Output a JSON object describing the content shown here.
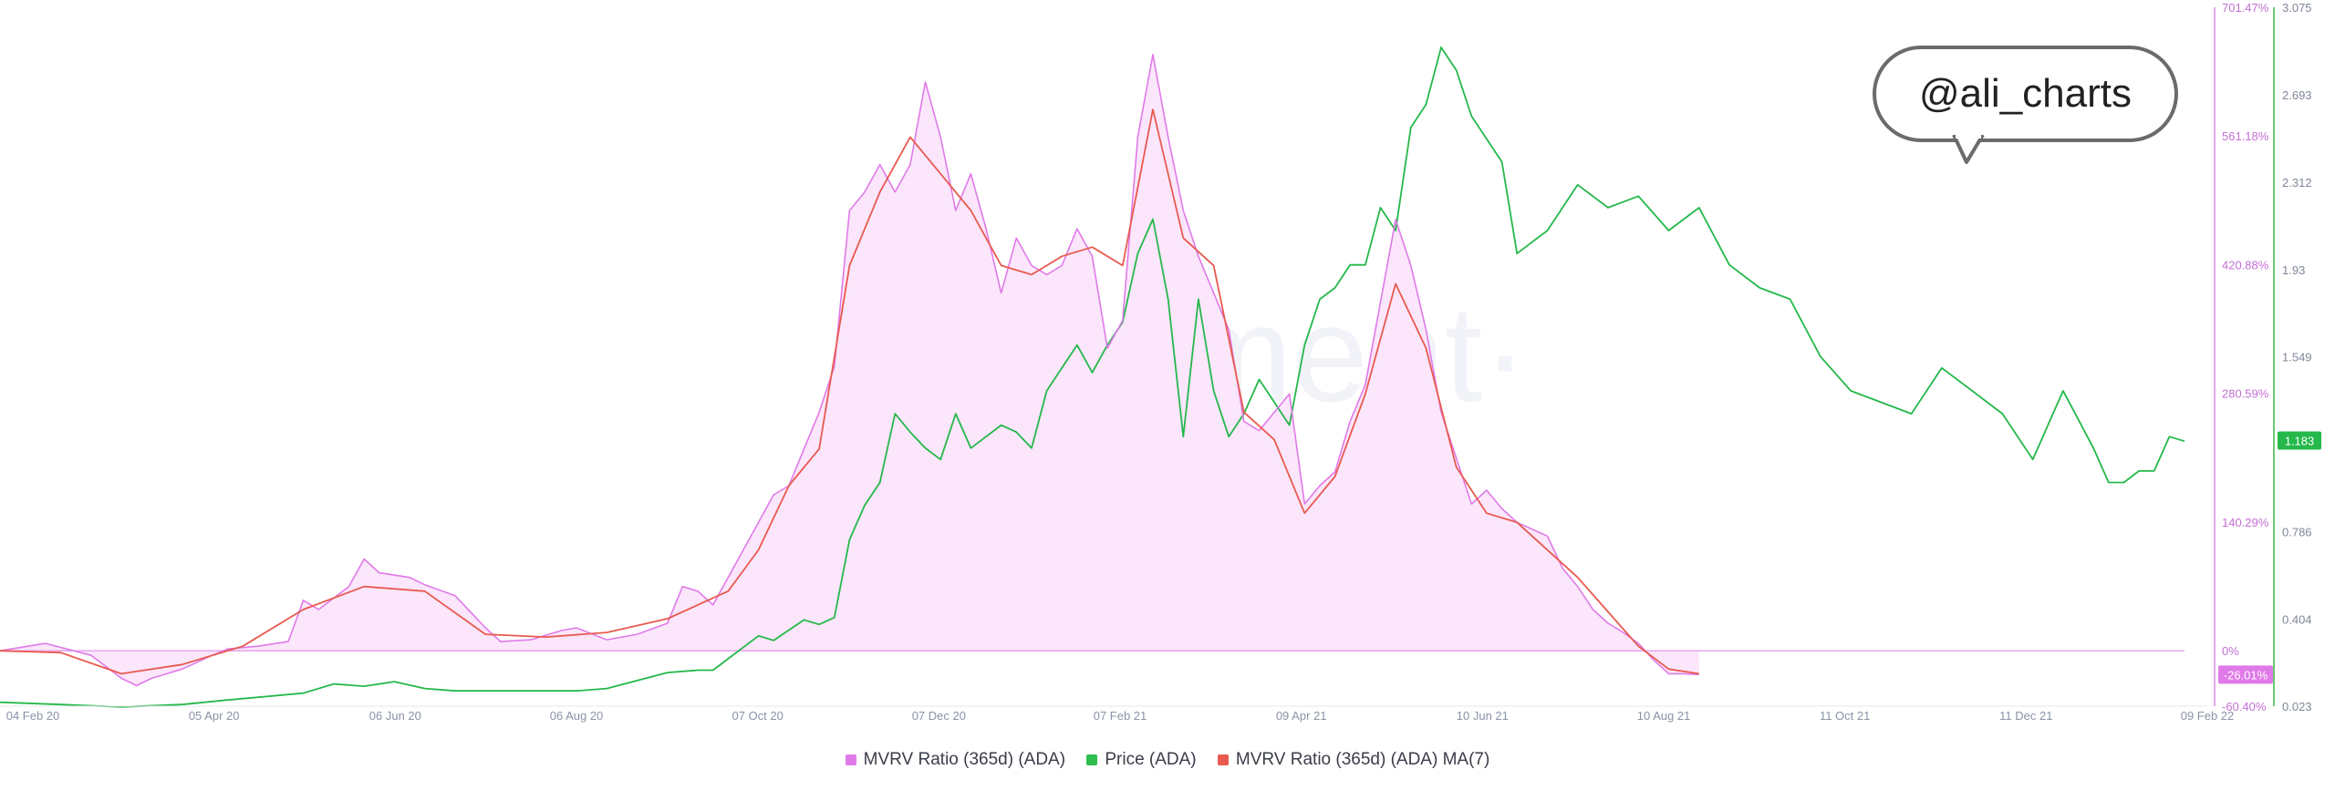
{
  "watermark": "·santiment·",
  "bubble": {
    "text": "@ali_charts"
  },
  "colors": {
    "mvrv": "#e07ae8",
    "mvrv_fill": "#fbe6fc",
    "price": "#25b84a",
    "ma": "#e85a4f",
    "zero_line": "#e6a6ec"
  },
  "legend": [
    {
      "name": "MVRV Ratio (365d) (ADA)",
      "color": "#e07ae8"
    },
    {
      "name": "Price (ADA)",
      "color": "#2ebd4e"
    },
    {
      "name": "MVRV Ratio (365d) (ADA) MA(7)",
      "color": "#e85a4f"
    }
  ],
  "chart_data": {
    "type": "line",
    "x_ticks": [
      "04 Feb 20",
      "05 Apr 20",
      "06 Jun 20",
      "06 Aug 20",
      "07 Oct 20",
      "07 Dec 20",
      "07 Feb 21",
      "09 Apr 21",
      "10 Jun 21",
      "10 Aug 21",
      "11 Oct 21",
      "11 Dec 21",
      "09 Feb 22"
    ],
    "left_axis": {
      "ticks": [
        "701.47%",
        "561.18%",
        "420.88%",
        "280.59%",
        "140.29%",
        "0%",
        "-60.40%"
      ],
      "range": [
        -60.4,
        701.47
      ],
      "badge": "-26.01%"
    },
    "right_axis": {
      "ticks": [
        "3.075",
        "2.693",
        "2.312",
        "1.93",
        "1.549",
        "1.168",
        "0.786",
        "0.404",
        "0.023"
      ],
      "range": [
        0.023,
        3.075
      ],
      "badge": "1.183"
    },
    "series": [
      {
        "name": "MVRV Ratio (365d) (ADA)",
        "axis": "left",
        "points": [
          [
            0,
            0
          ],
          [
            3,
            8
          ],
          [
            6,
            -5
          ],
          [
            8,
            -30
          ],
          [
            9,
            -38
          ],
          [
            10,
            -30
          ],
          [
            11,
            -25
          ],
          [
            12,
            -20
          ],
          [
            14,
            -5
          ],
          [
            15,
            2
          ],
          [
            17,
            5
          ],
          [
            19,
            10
          ],
          [
            20,
            55
          ],
          [
            21,
            45
          ],
          [
            23,
            70
          ],
          [
            24,
            100
          ],
          [
            25,
            85
          ],
          [
            27,
            80
          ],
          [
            28,
            72
          ],
          [
            30,
            60
          ],
          [
            32,
            25
          ],
          [
            33,
            10
          ],
          [
            35,
            12
          ],
          [
            37,
            22
          ],
          [
            38,
            25
          ],
          [
            40,
            12
          ],
          [
            42,
            18
          ],
          [
            44,
            30
          ],
          [
            45,
            70
          ],
          [
            46,
            65
          ],
          [
            47,
            50
          ],
          [
            50,
            140
          ],
          [
            51,
            170
          ],
          [
            52,
            180
          ],
          [
            54,
            260
          ],
          [
            55,
            310
          ],
          [
            56,
            480
          ],
          [
            57,
            500
          ],
          [
            58,
            530
          ],
          [
            59,
            500
          ],
          [
            60,
            530
          ],
          [
            61,
            620
          ],
          [
            62,
            560
          ],
          [
            63,
            480
          ],
          [
            64,
            520
          ],
          [
            65,
            460
          ],
          [
            66,
            390
          ],
          [
            67,
            450
          ],
          [
            68,
            420
          ],
          [
            69,
            410
          ],
          [
            70,
            420
          ],
          [
            71,
            460
          ],
          [
            72,
            430
          ],
          [
            73,
            330
          ],
          [
            74,
            360
          ],
          [
            75,
            560
          ],
          [
            76,
            650
          ],
          [
            77,
            560
          ],
          [
            78,
            480
          ],
          [
            79,
            430
          ],
          [
            80,
            390
          ],
          [
            81,
            350
          ],
          [
            82,
            250
          ],
          [
            83,
            240
          ],
          [
            85,
            280
          ],
          [
            86,
            160
          ],
          [
            87,
            180
          ],
          [
            88,
            195
          ],
          [
            89,
            250
          ],
          [
            90,
            290
          ],
          [
            91,
            380
          ],
          [
            92,
            470
          ],
          [
            93,
            420
          ],
          [
            94,
            350
          ],
          [
            95,
            260
          ],
          [
            96,
            210
          ],
          [
            97,
            160
          ],
          [
            98,
            175
          ],
          [
            99,
            155
          ],
          [
            100,
            140
          ],
          [
            102,
            125
          ],
          [
            103,
            90
          ],
          [
            104,
            70
          ],
          [
            105,
            45
          ],
          [
            106,
            30
          ],
          [
            107,
            20
          ],
          [
            108,
            8
          ],
          [
            109,
            -10
          ],
          [
            110,
            -25
          ],
          [
            111,
            -25
          ],
          [
            112,
            -26
          ]
        ]
      },
      {
        "name": "Price (ADA)",
        "axis": "right",
        "points": [
          [
            0,
            0.04
          ],
          [
            4,
            0.03
          ],
          [
            8,
            0.02
          ],
          [
            12,
            0.03
          ],
          [
            15,
            0.05
          ],
          [
            20,
            0.08
          ],
          [
            22,
            0.12
          ],
          [
            24,
            0.11
          ],
          [
            26,
            0.13
          ],
          [
            28,
            0.1
          ],
          [
            30,
            0.09
          ],
          [
            33,
            0.09
          ],
          [
            36,
            0.09
          ],
          [
            38,
            0.09
          ],
          [
            40,
            0.1
          ],
          [
            44,
            0.17
          ],
          [
            46,
            0.18
          ],
          [
            47,
            0.18
          ],
          [
            50,
            0.33
          ],
          [
            51,
            0.31
          ],
          [
            53,
            0.4
          ],
          [
            54,
            0.38
          ],
          [
            55,
            0.41
          ],
          [
            56,
            0.75
          ],
          [
            57,
            0.9
          ],
          [
            58,
            1.0
          ],
          [
            59,
            1.3
          ],
          [
            60,
            1.22
          ],
          [
            61,
            1.15
          ],
          [
            62,
            1.1
          ],
          [
            63,
            1.3
          ],
          [
            64,
            1.15
          ],
          [
            65,
            1.2
          ],
          [
            66,
            1.25
          ],
          [
            67,
            1.22
          ],
          [
            68,
            1.15
          ],
          [
            69,
            1.4
          ],
          [
            70,
            1.5
          ],
          [
            71,
            1.6
          ],
          [
            72,
            1.48
          ],
          [
            73,
            1.6
          ],
          [
            74,
            1.7
          ],
          [
            75,
            2.0
          ],
          [
            76,
            2.15
          ],
          [
            77,
            1.8
          ],
          [
            78,
            1.2
          ],
          [
            79,
            1.8
          ],
          [
            80,
            1.4
          ],
          [
            81,
            1.2
          ],
          [
            82,
            1.3
          ],
          [
            83,
            1.45
          ],
          [
            85,
            1.25
          ],
          [
            86,
            1.6
          ],
          [
            87,
            1.8
          ],
          [
            88,
            1.85
          ],
          [
            89,
            1.95
          ],
          [
            90,
            1.95
          ],
          [
            91,
            2.2
          ],
          [
            92,
            2.1
          ],
          [
            93,
            2.55
          ],
          [
            94,
            2.65
          ],
          [
            95,
            2.9
          ],
          [
            96,
            2.8
          ],
          [
            97,
            2.6
          ],
          [
            98,
            2.5
          ],
          [
            99,
            2.4
          ],
          [
            100,
            2.0
          ],
          [
            102,
            2.1
          ],
          [
            104,
            2.3
          ],
          [
            106,
            2.2
          ],
          [
            108,
            2.25
          ],
          [
            110,
            2.1
          ],
          [
            112,
            2.2
          ],
          [
            114,
            1.95
          ],
          [
            116,
            1.85
          ],
          [
            118,
            1.8
          ],
          [
            120,
            1.55
          ],
          [
            122,
            1.4
          ],
          [
            124,
            1.35
          ],
          [
            126,
            1.3
          ],
          [
            128,
            1.5
          ],
          [
            130,
            1.4
          ],
          [
            132,
            1.3
          ],
          [
            134,
            1.1
          ],
          [
            136,
            1.4
          ],
          [
            138,
            1.15
          ],
          [
            139,
            1.0
          ],
          [
            140,
            1.0
          ],
          [
            141,
            1.05
          ],
          [
            142,
            1.05
          ],
          [
            143,
            1.2
          ],
          [
            144,
            1.18
          ]
        ]
      },
      {
        "name": "MVRV Ratio (365d) (ADA) MA(7)",
        "axis": "left",
        "points": [
          [
            0,
            0
          ],
          [
            4,
            -2
          ],
          [
            8,
            -25
          ],
          [
            12,
            -15
          ],
          [
            16,
            5
          ],
          [
            20,
            45
          ],
          [
            24,
            70
          ],
          [
            28,
            65
          ],
          [
            32,
            18
          ],
          [
            36,
            15
          ],
          [
            40,
            20
          ],
          [
            44,
            35
          ],
          [
            48,
            65
          ],
          [
            50,
            110
          ],
          [
            52,
            180
          ],
          [
            54,
            220
          ],
          [
            56,
            420
          ],
          [
            58,
            500
          ],
          [
            60,
            560
          ],
          [
            62,
            520
          ],
          [
            64,
            480
          ],
          [
            66,
            420
          ],
          [
            68,
            410
          ],
          [
            70,
            430
          ],
          [
            72,
            440
          ],
          [
            74,
            420
          ],
          [
            76,
            590
          ],
          [
            78,
            450
          ],
          [
            80,
            420
          ],
          [
            82,
            260
          ],
          [
            84,
            230
          ],
          [
            86,
            150
          ],
          [
            88,
            190
          ],
          [
            90,
            280
          ],
          [
            92,
            400
          ],
          [
            94,
            330
          ],
          [
            96,
            200
          ],
          [
            98,
            150
          ],
          [
            100,
            140
          ],
          [
            104,
            80
          ],
          [
            108,
            5
          ],
          [
            110,
            -20
          ],
          [
            112,
            -25
          ]
        ]
      }
    ]
  }
}
